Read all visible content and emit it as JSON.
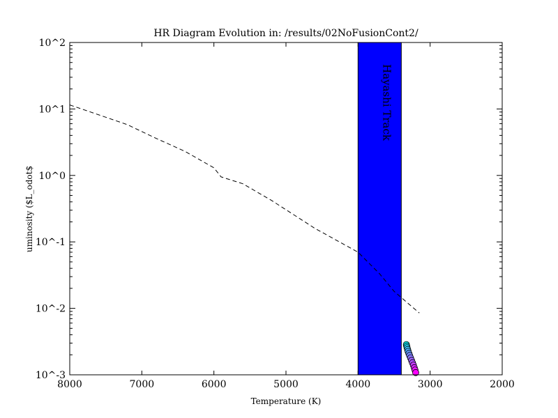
{
  "chart_data": {
    "type": "scatter",
    "title": "HR Diagram Evolution in: /results/02NoFusionCont2/",
    "xlabel": "Temperature (K)",
    "ylabel": "uminosity ($L_odot$",
    "xlim": [
      8000,
      2000
    ],
    "x_inverted": true,
    "ylim": [
      0.001,
      100
    ],
    "yscale": "log",
    "xticks": [
      8000,
      7000,
      6000,
      5000,
      4000,
      3000,
      2000
    ],
    "yticks": [
      {
        "value": 0.001,
        "label": "10^-3"
      },
      {
        "value": 0.01,
        "label": "10^-2"
      },
      {
        "value": 0.1,
        "label": "10^-1"
      },
      {
        "value": 1,
        "label": "10^0"
      },
      {
        "value": 10,
        "label": "10^1"
      },
      {
        "value": 100,
        "label": "10^2"
      }
    ],
    "grid": false,
    "band": {
      "label": "Hayashi Track",
      "x_range": [
        4000,
        3400
      ],
      "color": "#0000ff"
    },
    "reference_line": {
      "style": "dashed",
      "color": "#000000",
      "points": [
        [
          8000,
          11.5
        ],
        [
          7500,
          7.5
        ],
        [
          7200,
          5.8
        ],
        [
          6800,
          3.6
        ],
        [
          6400,
          2.3
        ],
        [
          6000,
          1.3
        ],
        [
          5900,
          0.95
        ],
        [
          5600,
          0.75
        ],
        [
          5200,
          0.42
        ],
        [
          4600,
          0.16
        ],
        [
          4000,
          0.07
        ],
        [
          3700,
          0.033
        ],
        [
          3500,
          0.018
        ],
        [
          3150,
          0.0085
        ]
      ]
    },
    "series": [
      {
        "marker": "circle",
        "colormap": [
          "#00ffff",
          "#ff00ff"
        ],
        "points": [
          [
            3330,
            0.00285
          ],
          [
            3325,
            0.0027
          ],
          [
            3320,
            0.00255
          ],
          [
            3312,
            0.0024
          ],
          [
            3305,
            0.00225
          ],
          [
            3295,
            0.0021
          ],
          [
            3285,
            0.00195
          ],
          [
            3272,
            0.0018
          ],
          [
            3258,
            0.00165
          ],
          [
            3245,
            0.00152
          ],
          [
            3232,
            0.0014
          ],
          [
            3220,
            0.00128
          ],
          [
            3210,
            0.00118
          ],
          [
            3200,
            0.00108
          ]
        ]
      }
    ]
  }
}
